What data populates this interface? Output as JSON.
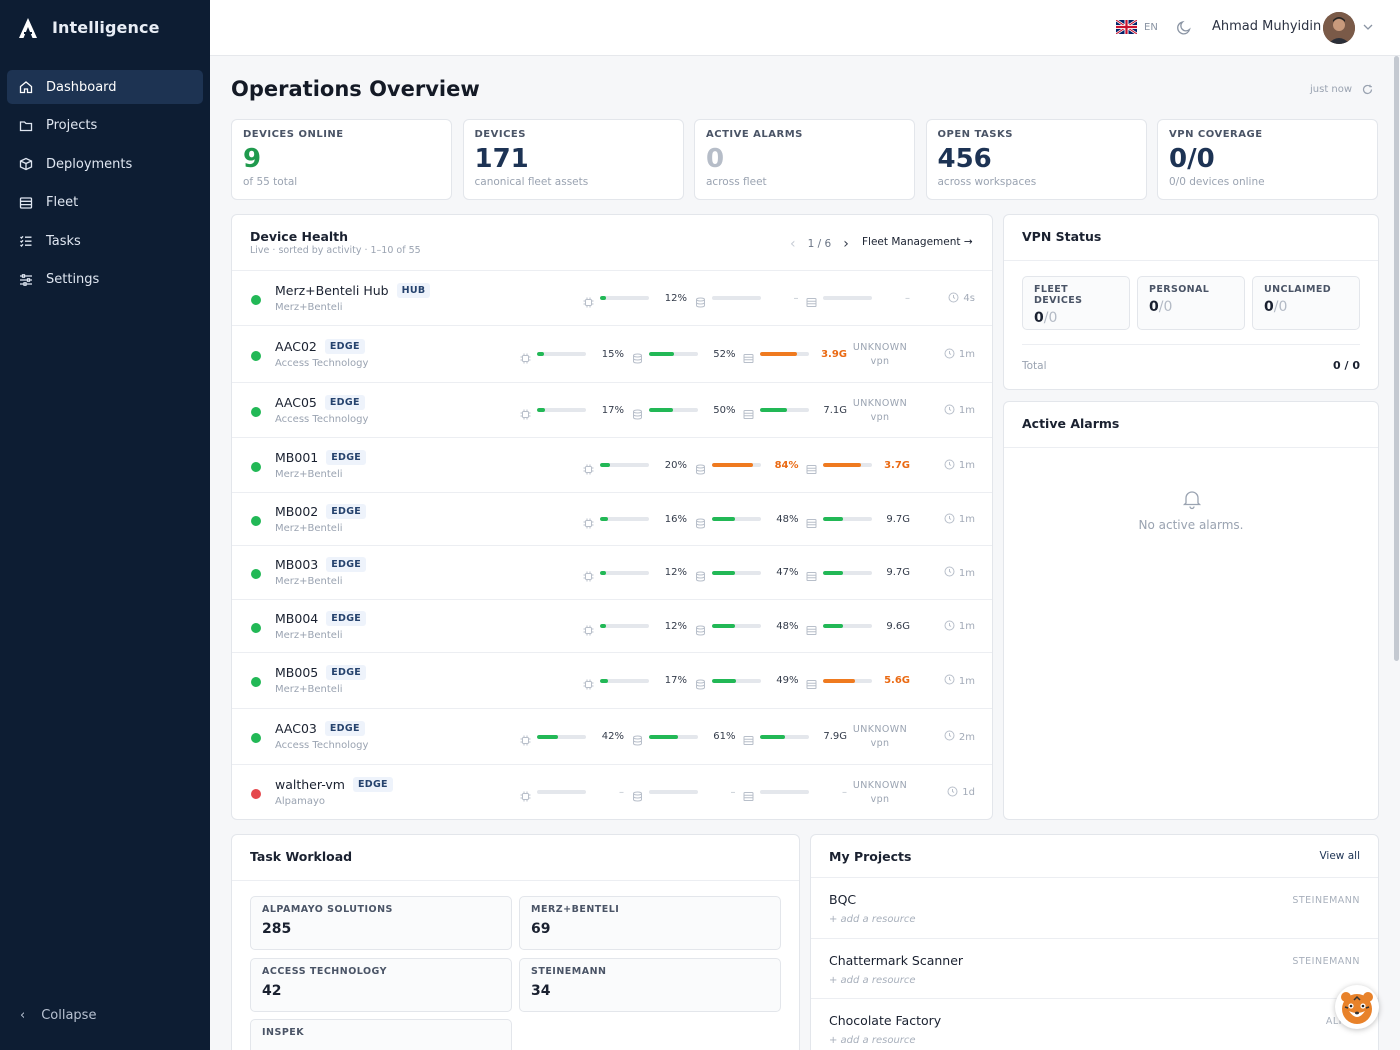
{
  "app": {
    "name": "Intelligence"
  },
  "sidebar": {
    "items": [
      {
        "label": "Dashboard",
        "icon": "home-icon",
        "active": true
      },
      {
        "label": "Projects",
        "icon": "folder-icon"
      },
      {
        "label": "Deployments",
        "icon": "box-icon"
      },
      {
        "label": "Fleet",
        "icon": "server-icon"
      },
      {
        "label": "Tasks",
        "icon": "list-check-icon"
      },
      {
        "label": "Settings",
        "icon": "sliders-icon"
      }
    ],
    "collapse_label": "Collapse"
  },
  "topbar": {
    "lang": "EN",
    "user_name": "Ahmad Muhyidin"
  },
  "page": {
    "title": "Operations Overview",
    "refreshed": "just now"
  },
  "stats": [
    {
      "label": "DEVICES ONLINE",
      "value": "9",
      "sub": "of 55 total",
      "tone": "green"
    },
    {
      "label": "DEVICES",
      "value": "171",
      "sub": "canonical fleet assets",
      "tone": ""
    },
    {
      "label": "ACTIVE ALARMS",
      "value": "0",
      "sub": "across fleet",
      "tone": "muted"
    },
    {
      "label": "OPEN TASKS",
      "value": "456",
      "sub": "across workspaces",
      "tone": ""
    },
    {
      "label": "VPN COVERAGE",
      "value": "0/0",
      "sub": "0/0 devices online",
      "tone": ""
    }
  ],
  "device_health": {
    "title": "Device Health",
    "subtitle": "Live · sorted by activity · 1–10 of 55",
    "pager": "1 / 6",
    "link": "Fleet Management →",
    "rows": [
      {
        "name": "Merz+Benteli Hub",
        "badge": "HUB",
        "org": "Merz+Benteli",
        "status": "ok",
        "layout": "b",
        "cpu": 12,
        "cpu_label": "12%",
        "mem": 0,
        "mem_label": "–",
        "disk": 0,
        "disk_label": "–",
        "vpn": "",
        "vpn_sub": "",
        "ago": "4s"
      },
      {
        "name": "AAC02",
        "badge": "EDGE",
        "org": "Access Technology",
        "status": "ok",
        "layout": "a",
        "cpu": 15,
        "cpu_label": "15%",
        "mem": 52,
        "mem_label": "52%",
        "disk": 75,
        "disk_label": "3.9G",
        "disk_warn": true,
        "vpn": "UNKNOWN",
        "vpn_sub": "vpn",
        "ago": "1m"
      },
      {
        "name": "AAC05",
        "badge": "EDGE",
        "org": "Access Technology",
        "status": "ok",
        "layout": "a",
        "cpu": 17,
        "cpu_label": "17%",
        "mem": 50,
        "mem_label": "50%",
        "disk": 55,
        "disk_label": "7.1G",
        "vpn": "UNKNOWN",
        "vpn_sub": "vpn",
        "ago": "1m"
      },
      {
        "name": "MB001",
        "badge": "EDGE",
        "org": "Merz+Benteli",
        "status": "ok",
        "layout": "b",
        "cpu": 20,
        "cpu_label": "20%",
        "mem": 84,
        "mem_label": "84%",
        "mem_warn": true,
        "disk": 78,
        "disk_label": "3.7G",
        "disk_warn": true,
        "vpn": "",
        "vpn_sub": "",
        "ago": "1m"
      },
      {
        "name": "MB002",
        "badge": "EDGE",
        "org": "Merz+Benteli",
        "status": "ok",
        "layout": "b",
        "cpu": 16,
        "cpu_label": "16%",
        "mem": 48,
        "mem_label": "48%",
        "disk": 40,
        "disk_label": "9.7G",
        "vpn": "",
        "vpn_sub": "",
        "ago": "1m"
      },
      {
        "name": "MB003",
        "badge": "EDGE",
        "org": "Merz+Benteli",
        "status": "ok",
        "layout": "b",
        "cpu": 12,
        "cpu_label": "12%",
        "mem": 47,
        "mem_label": "47%",
        "disk": 40,
        "disk_label": "9.7G",
        "vpn": "",
        "vpn_sub": "",
        "ago": "1m"
      },
      {
        "name": "MB004",
        "badge": "EDGE",
        "org": "Merz+Benteli",
        "status": "ok",
        "layout": "b",
        "cpu": 12,
        "cpu_label": "12%",
        "mem": 48,
        "mem_label": "48%",
        "disk": 41,
        "disk_label": "9.6G",
        "vpn": "",
        "vpn_sub": "",
        "ago": "1m"
      },
      {
        "name": "MB005",
        "badge": "EDGE",
        "org": "Merz+Benteli",
        "status": "ok",
        "layout": "b",
        "cpu": 17,
        "cpu_label": "17%",
        "mem": 49,
        "mem_label": "49%",
        "disk": 65,
        "disk_label": "5.6G",
        "disk_warn": true,
        "vpn": "",
        "vpn_sub": "",
        "ago": "1m"
      },
      {
        "name": "AAC03",
        "badge": "EDGE",
        "org": "Access Technology",
        "status": "ok",
        "layout": "a",
        "cpu": 42,
        "cpu_label": "42%",
        "mem": 61,
        "mem_label": "61%",
        "disk": 50,
        "disk_label": "7.9G",
        "vpn": "UNKNOWN",
        "vpn_sub": "vpn",
        "ago": "2m"
      },
      {
        "name": "walther-vm",
        "badge": "EDGE",
        "org": "Alpamayo",
        "status": "down",
        "layout": "a",
        "cpu": 0,
        "cpu_label": "–",
        "mem": 0,
        "mem_label": "–",
        "disk": 0,
        "disk_label": "–",
        "vpn": "UNKNOWN",
        "vpn_sub": "vpn",
        "ago": "1d"
      }
    ]
  },
  "vpn_status": {
    "title": "VPN Status",
    "tiles": [
      {
        "label": "FLEET DEVICES",
        "value": "0",
        "total": "/0"
      },
      {
        "label": "PERSONAL",
        "value": "0",
        "total": "/0"
      },
      {
        "label": "UNCLAIMED",
        "value": "0",
        "total": "/0"
      }
    ],
    "total_label": "Total",
    "total_value": "0 / 0"
  },
  "alarms": {
    "title": "Active Alarms",
    "empty": "No active alarms."
  },
  "task_workload": {
    "title": "Task Workload",
    "tiles": [
      {
        "label": "ALPAMAYO SOLUTIONS",
        "value": "285"
      },
      {
        "label": "MERZ+BENTELI",
        "value": "69"
      },
      {
        "label": "ACCESS TECHNOLOGY",
        "value": "42"
      },
      {
        "label": "STEINEMANN",
        "value": "34"
      },
      {
        "label": "INSPEK",
        "value": ""
      }
    ]
  },
  "projects": {
    "title": "My Projects",
    "view_all": "View all",
    "items": [
      {
        "name": "BQC",
        "add": "+ add a resource",
        "org": "STEINEMANN"
      },
      {
        "name": "Chattermark Scanner",
        "add": "+ add a resource",
        "org": "STEINEMANN"
      },
      {
        "name": "Chocolate Factory",
        "add": "+ add a resource",
        "org": "ALPAM"
      }
    ]
  },
  "colors": {
    "sidebar": "#0d1d33",
    "accent_green": "#22b856",
    "warn_orange": "#ef7a1f",
    "error_red": "#e5484d"
  }
}
